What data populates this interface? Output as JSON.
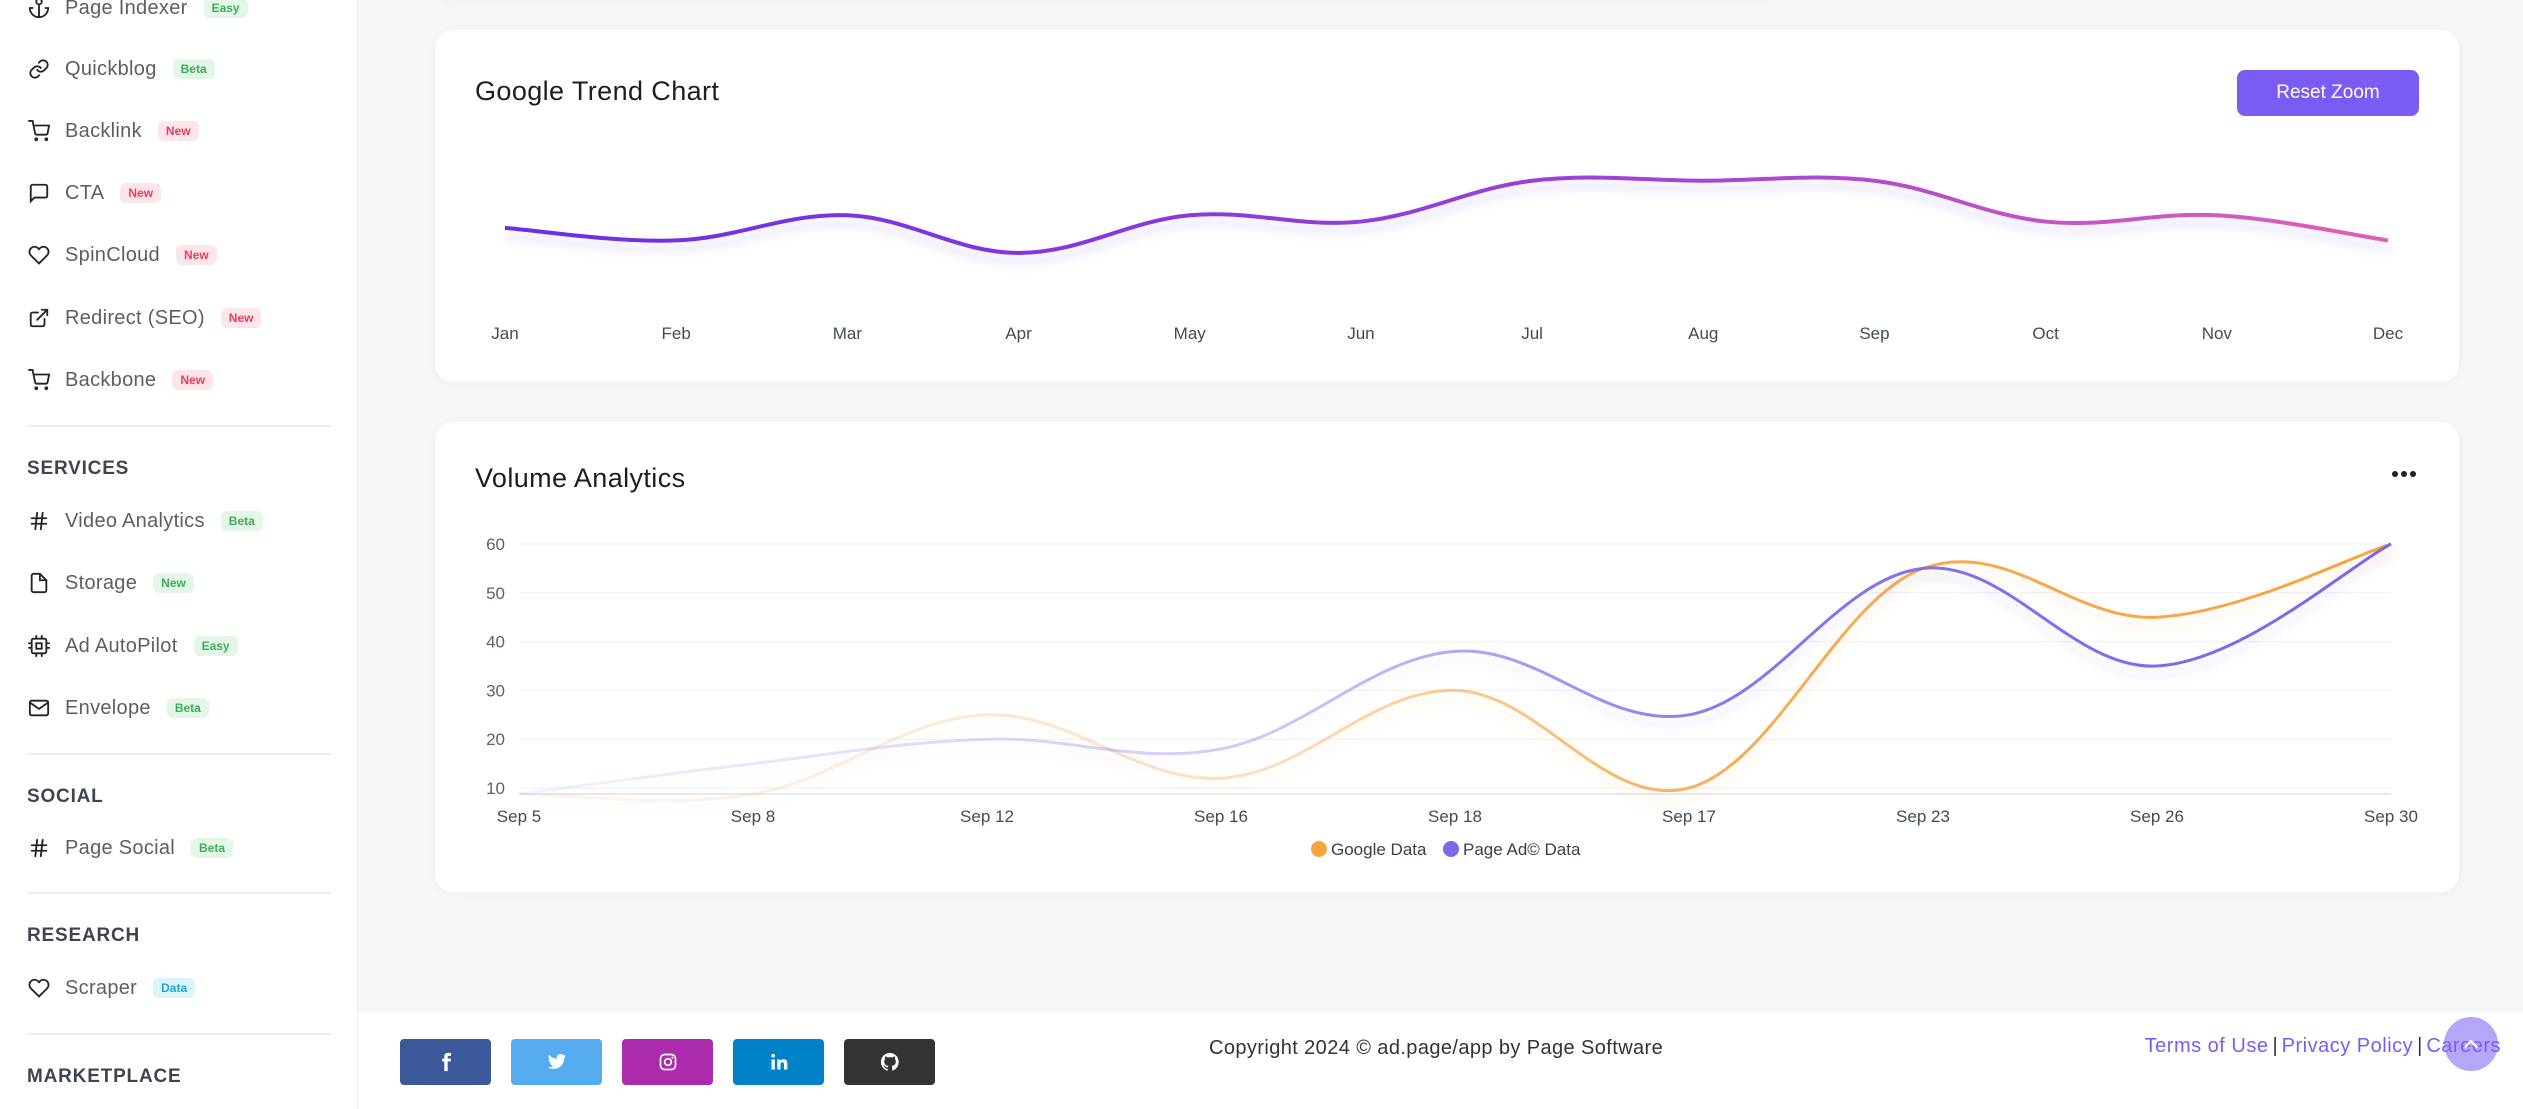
{
  "sidebar": {
    "items": [
      {
        "label": "Page Indexer",
        "badge": "Easy",
        "icon": "anchor-icon"
      },
      {
        "label": "Quickblog",
        "badge": "Beta",
        "icon": "link-icon"
      },
      {
        "label": "Backlink",
        "badge": "New",
        "icon": "cart-icon"
      },
      {
        "label": "CTA",
        "badge": "New",
        "icon": "message-icon"
      },
      {
        "label": "SpinCloud",
        "badge": "New",
        "icon": "heart-icon"
      },
      {
        "label": "Redirect (SEO)",
        "badge": "New",
        "icon": "external-link-icon"
      },
      {
        "label": "Backbone",
        "badge": "New",
        "icon": "cart-icon"
      }
    ],
    "services": {
      "heading": "SERVICES",
      "items": [
        {
          "label": "Video Analytics",
          "badge": "Beta",
          "icon": "hash-icon"
        },
        {
          "label": "Storage",
          "badge": "New",
          "icon": "file-icon"
        },
        {
          "label": "Ad AutoPilot",
          "badge": "Easy",
          "icon": "cpu-icon"
        },
        {
          "label": "Envelope",
          "badge": "Beta",
          "icon": "mail-icon"
        }
      ]
    },
    "social": {
      "heading": "SOCIAL",
      "items": [
        {
          "label": "Page Social",
          "badge": "Beta",
          "icon": "hash-icon"
        }
      ]
    },
    "research": {
      "heading": "RESEARCH",
      "items": [
        {
          "label": "Scraper",
          "badge": "Data",
          "icon": "heart-icon"
        }
      ]
    },
    "marketplace": {
      "heading": "MARKETPLACE"
    }
  },
  "trend_card": {
    "title": "Google Trend Chart",
    "reset_label": "Reset Zoom"
  },
  "volume_card": {
    "title": "Volume Analytics",
    "menu_icon": "more-horizontal-icon"
  },
  "chart_data": [
    {
      "type": "line",
      "title": "Google Trend Chart",
      "categories": [
        "Jan",
        "Feb",
        "Mar",
        "Apr",
        "May",
        "Jun",
        "Jul",
        "Aug",
        "Sep",
        "Oct",
        "Nov",
        "Dec"
      ],
      "series": [
        {
          "values": [
            45,
            41,
            49,
            37,
            49,
            47,
            60,
            60,
            60,
            47,
            49,
            41
          ]
        }
      ],
      "ylim": [
        30,
        65
      ],
      "grid": false,
      "colors": {
        "start": "#6a2ee8",
        "mid": "#9a3fd8",
        "end": "#e060b8"
      }
    },
    {
      "type": "area",
      "title": "Volume Analytics",
      "categories": [
        "Sep 5",
        "Sep 8",
        "Sep 12",
        "Sep 16",
        "Sep 18",
        "Sep 17",
        "Sep 23",
        "Sep 26",
        "Sep 30"
      ],
      "series": [
        {
          "name": "Google Data",
          "color": "#f7a440",
          "values": [
            0,
            5,
            25,
            12,
            30,
            10,
            55,
            45,
            60
          ]
        },
        {
          "name": "Page Ad© Data",
          "color": "#7b66ec",
          "values": [
            5,
            15,
            20,
            18,
            38,
            25,
            55,
            35,
            60
          ]
        }
      ],
      "yticks": [
        10,
        20,
        30,
        40,
        50,
        60
      ],
      "ylim": [
        10,
        60
      ],
      "grid": true,
      "legend": "bottom-center"
    }
  ],
  "footer": {
    "social": [
      {
        "name": "facebook",
        "color": "#3b5998"
      },
      {
        "name": "twitter",
        "color": "#55acee"
      },
      {
        "name": "instagram",
        "color": "#ac2bac"
      },
      {
        "name": "linkedin",
        "color": "#0082ca"
      },
      {
        "name": "github",
        "color": "#333333"
      }
    ],
    "copyright": "Copyright 2024 © ad.page/app by Page Software",
    "links": [
      "Terms of Use",
      "Privacy Policy",
      "Careers"
    ]
  }
}
